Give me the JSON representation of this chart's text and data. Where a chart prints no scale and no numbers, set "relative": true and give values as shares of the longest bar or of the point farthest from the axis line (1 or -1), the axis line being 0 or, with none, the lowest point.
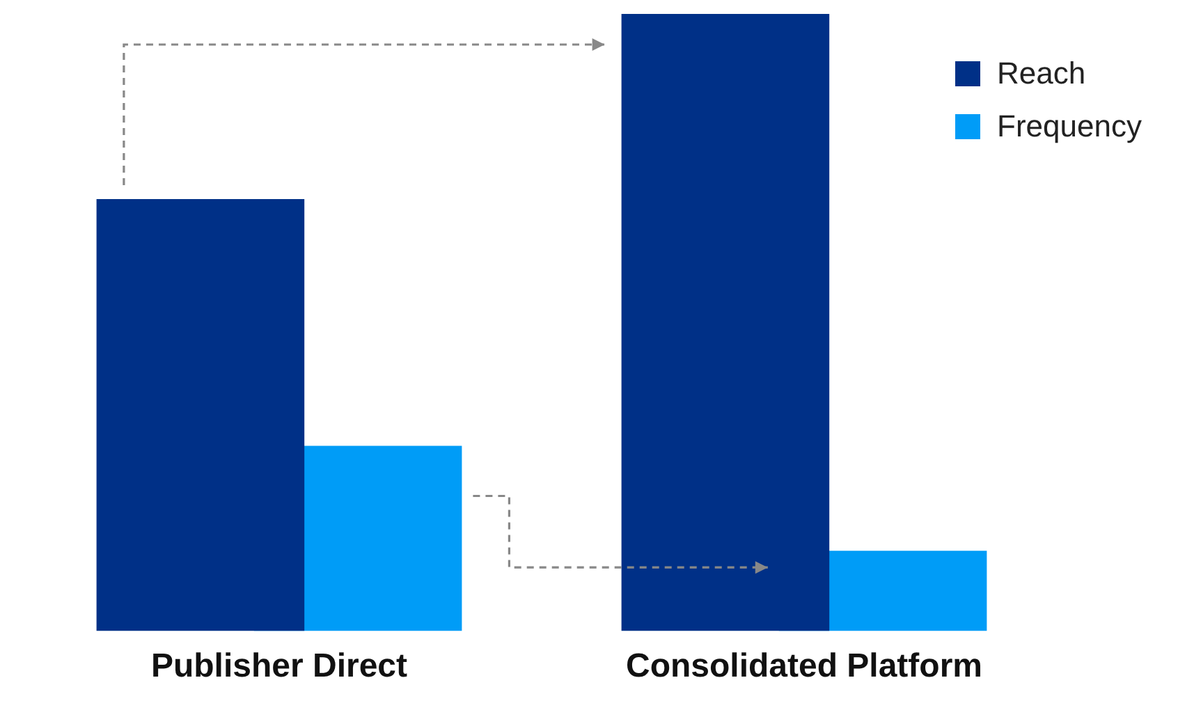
{
  "chart_data": {
    "type": "bar",
    "relative": true,
    "categories": [
      "Publisher Direct",
      "Consolidated Platform"
    ],
    "series": [
      {
        "name": "Reach",
        "color": "#003087",
        "values": [
          0.7,
          1
        ]
      },
      {
        "name": "Frequency",
        "color": "#009cf7",
        "values": [
          0.3,
          0.13
        ]
      }
    ],
    "legend": "top right"
  }
}
